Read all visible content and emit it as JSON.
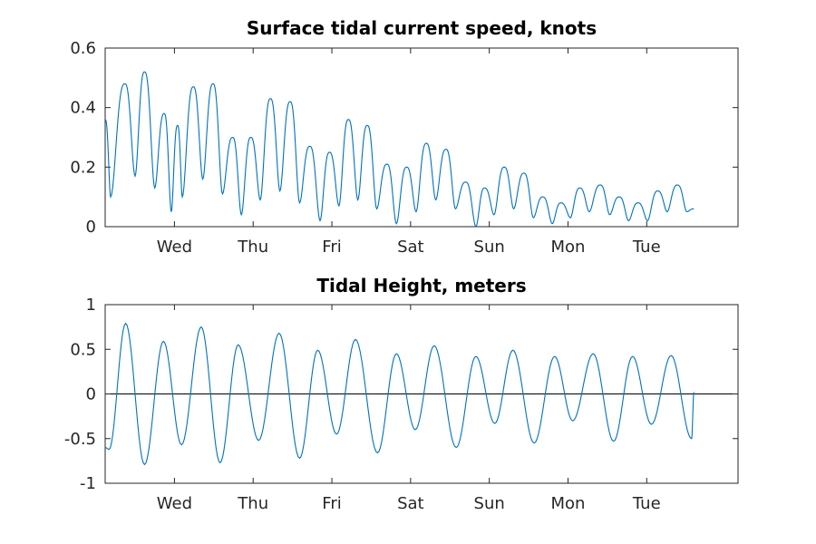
{
  "chart_data": [
    {
      "type": "line",
      "title": "Surface tidal current speed, knots",
      "xlabel": "",
      "ylabel": "",
      "ylim": [
        0,
        0.6
      ],
      "yticks": [
        "0",
        "0.2",
        "0.4",
        "0.6"
      ],
      "xticks": [
        "Wed",
        "Thu",
        "Fri",
        "Sat",
        "Sun",
        "Mon",
        "Tue"
      ],
      "x_unit": "days",
      "xlim": [
        -0.88,
        7.16
      ],
      "grid": false,
      "series": [
        {
          "color": "#0072bd",
          "peaks": [
            [
              -0.88,
              0.36
            ],
            [
              -0.81,
              0.1
            ],
            [
              -0.63,
              0.48
            ],
            [
              -0.5,
              0.17
            ],
            [
              -0.38,
              0.52
            ],
            [
              -0.25,
              0.13
            ],
            [
              -0.13,
              0.38
            ],
            [
              -0.04,
              0.05
            ],
            [
              0.04,
              0.34
            ],
            [
              0.1,
              0.1
            ],
            [
              0.24,
              0.47
            ],
            [
              0.36,
              0.16
            ],
            [
              0.49,
              0.48
            ],
            [
              0.61,
              0.11
            ],
            [
              0.74,
              0.3
            ],
            [
              0.85,
              0.04
            ],
            [
              0.97,
              0.3
            ],
            [
              1.09,
              0.09
            ],
            [
              1.22,
              0.43
            ],
            [
              1.34,
              0.12
            ],
            [
              1.47,
              0.42
            ],
            [
              1.59,
              0.08
            ],
            [
              1.72,
              0.27
            ],
            [
              1.85,
              0.02
            ],
            [
              1.97,
              0.25
            ],
            [
              2.09,
              0.07
            ],
            [
              2.21,
              0.36
            ],
            [
              2.33,
              0.09
            ],
            [
              2.45,
              0.34
            ],
            [
              2.57,
              0.06
            ],
            [
              2.7,
              0.21
            ],
            [
              2.82,
              0.01
            ],
            [
              2.95,
              0.2
            ],
            [
              3.07,
              0.05
            ],
            [
              3.2,
              0.28
            ],
            [
              3.32,
              0.09
            ],
            [
              3.45,
              0.26
            ],
            [
              3.57,
              0.06
            ],
            [
              3.7,
              0.15
            ],
            [
              3.83,
              0.0
            ],
            [
              3.94,
              0.13
            ],
            [
              4.06,
              0.04
            ],
            [
              4.19,
              0.2
            ],
            [
              4.31,
              0.06
            ],
            [
              4.44,
              0.18
            ],
            [
              4.56,
              0.03
            ],
            [
              4.68,
              0.1
            ],
            [
              4.8,
              0.01
            ],
            [
              4.91,
              0.08
            ],
            [
              5.03,
              0.03
            ],
            [
              5.15,
              0.13
            ],
            [
              5.27,
              0.05
            ],
            [
              5.41,
              0.14
            ],
            [
              5.53,
              0.04
            ],
            [
              5.65,
              0.1
            ],
            [
              5.77,
              0.02
            ],
            [
              5.89,
              0.08
            ],
            [
              6.01,
              0.02
            ],
            [
              6.14,
              0.12
            ],
            [
              6.26,
              0.05
            ],
            [
              6.39,
              0.14
            ],
            [
              6.51,
              0.05
            ],
            [
              6.6,
              0.06
            ]
          ]
        }
      ]
    },
    {
      "type": "line",
      "title": "Tidal Height, meters",
      "xlabel": "",
      "ylabel": "",
      "ylim": [
        -1,
        1
      ],
      "yticks": [
        "-1",
        "-0.5",
        "0",
        "0.5",
        "1"
      ],
      "xticks": [
        "Wed",
        "Thu",
        "Fri",
        "Sat",
        "Sun",
        "Mon",
        "Tue"
      ],
      "x_unit": "days",
      "xlim": [
        -0.88,
        7.16
      ],
      "grid": false,
      "zero_line": true,
      "series": [
        {
          "color": "#0072bd",
          "extrema": [
            [
              -0.88,
              -0.6
            ],
            [
              -0.83,
              -0.62
            ],
            [
              -0.62,
              0.79
            ],
            [
              -0.38,
              -0.79
            ],
            [
              -0.14,
              0.59
            ],
            [
              0.09,
              -0.57
            ],
            [
              0.34,
              0.75
            ],
            [
              0.58,
              -0.77
            ],
            [
              0.81,
              0.55
            ],
            [
              1.07,
              -0.52
            ],
            [
              1.33,
              0.68
            ],
            [
              1.59,
              -0.72
            ],
            [
              1.82,
              0.49
            ],
            [
              2.06,
              -0.45
            ],
            [
              2.3,
              0.61
            ],
            [
              2.58,
              -0.66
            ],
            [
              2.82,
              0.45
            ],
            [
              3.06,
              -0.4
            ],
            [
              3.3,
              0.54
            ],
            [
              3.58,
              -0.6
            ],
            [
              3.83,
              0.42
            ],
            [
              4.07,
              -0.33
            ],
            [
              4.3,
              0.49
            ],
            [
              4.57,
              -0.55
            ],
            [
              4.83,
              0.42
            ],
            [
              5.06,
              -0.3
            ],
            [
              5.32,
              0.45
            ],
            [
              5.58,
              -0.53
            ],
            [
              5.82,
              0.42
            ],
            [
              6.06,
              -0.34
            ],
            [
              6.31,
              0.43
            ],
            [
              6.57,
              -0.5
            ],
            [
              6.6,
              0.02
            ]
          ]
        }
      ]
    }
  ]
}
